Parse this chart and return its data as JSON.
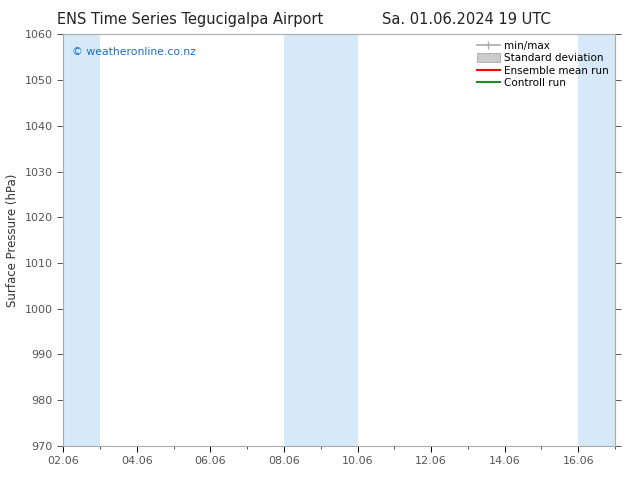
{
  "title_left": "ENS Time Series Tegucigalpa Airport",
  "title_right": "Sa. 01.06.2024 19 UTC",
  "ylabel": "Surface Pressure (hPa)",
  "ylim": [
    970,
    1060
  ],
  "yticks": [
    970,
    980,
    990,
    1000,
    1010,
    1020,
    1030,
    1040,
    1050,
    1060
  ],
  "xlim_start": 0,
  "xlim_end": 15,
  "xtick_labels": [
    "02.06",
    "04.06",
    "06.06",
    "08.06",
    "10.06",
    "12.06",
    "14.06",
    "16.06"
  ],
  "xtick_positions": [
    0,
    2,
    4,
    6,
    8,
    10,
    12,
    14
  ],
  "shaded_bands": [
    {
      "x_start": 0,
      "x_end": 1.0,
      "color": "#d6e9f8"
    },
    {
      "x_start": 6,
      "x_end": 8.0,
      "color": "#d6e9f8"
    },
    {
      "x_start": 14,
      "x_end": 15,
      "color": "#d6e9f8"
    }
  ],
  "legend_entries": [
    {
      "label": "min/max",
      "color": "#aaaaaa",
      "type": "minmax"
    },
    {
      "label": "Standard deviation",
      "color": "#cccccc",
      "type": "fill"
    },
    {
      "label": "Ensemble mean run",
      "color": "#ff0000",
      "type": "line"
    },
    {
      "label": "Controll run",
      "color": "#228b22",
      "type": "line"
    }
  ],
  "watermark": "© weatheronline.co.nz",
  "watermark_color": "#1a6ecc",
  "bg_color": "#ffffff",
  "spine_color": "#aaaaaa",
  "tick_color": "#555555",
  "title_fontsize": 10.5,
  "axis_fontsize": 8.5,
  "tick_fontsize": 8,
  "legend_fontsize": 7.5
}
